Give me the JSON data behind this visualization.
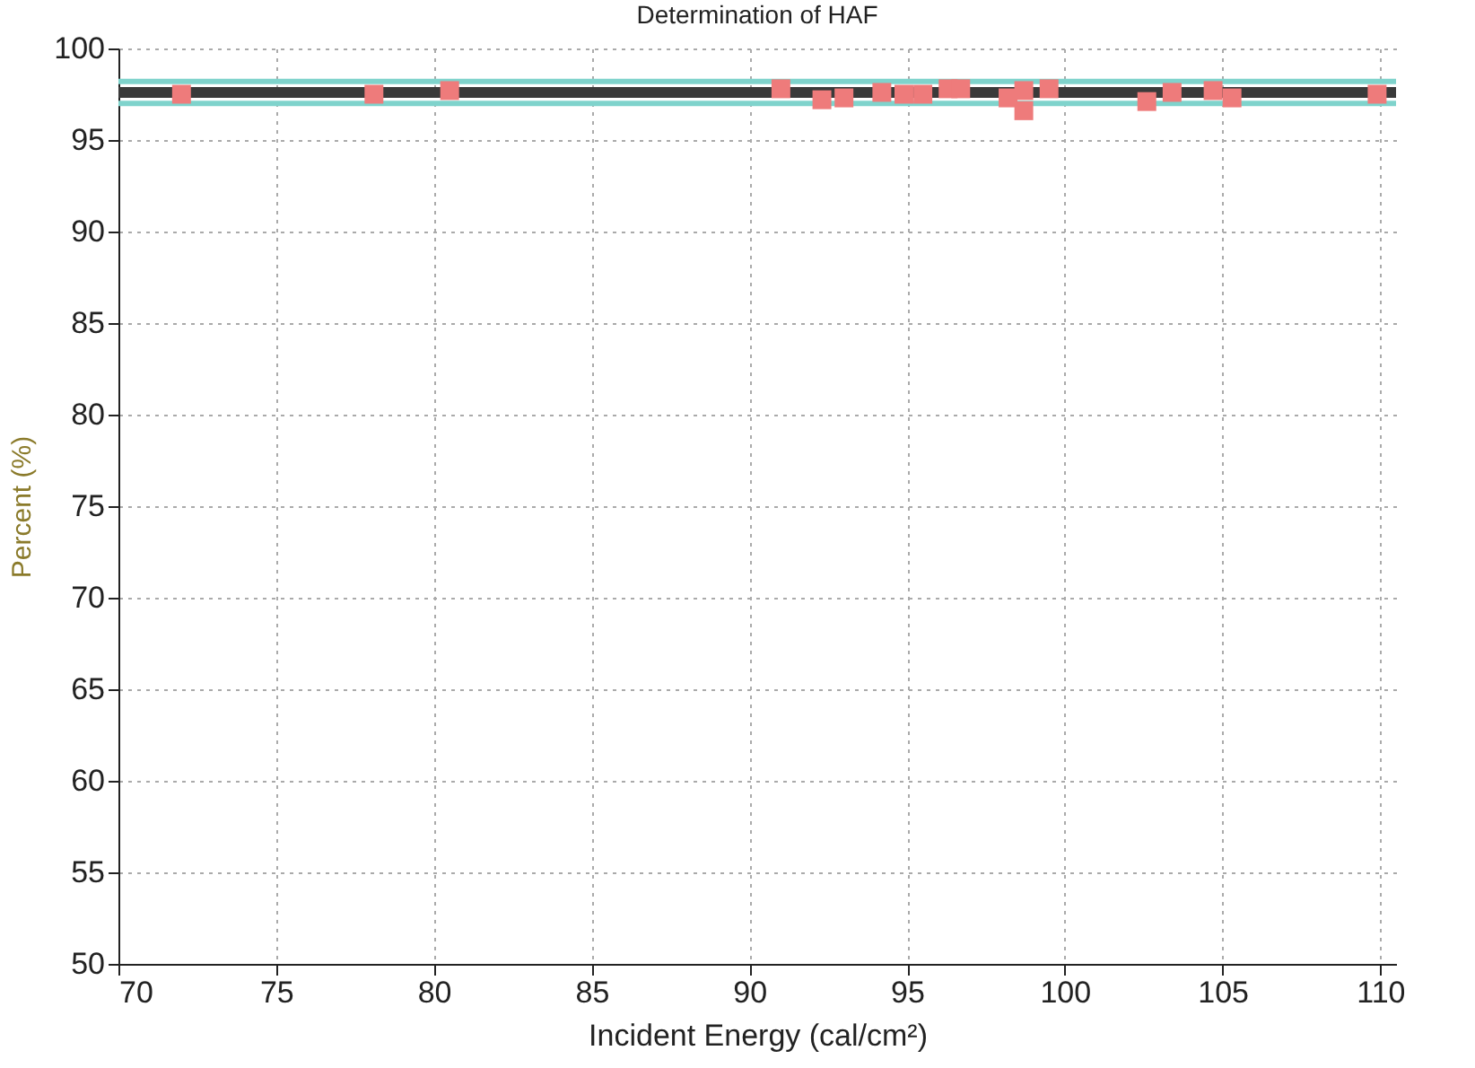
{
  "chart_data": {
    "type": "scatter",
    "title": "Determination of HAF",
    "xlabel": "Incident Energy (cal/cm²)",
    "ylabel": "Percent (%)",
    "x": [
      72.0,
      78.1,
      80.5,
      91.0,
      92.3,
      93.0,
      94.2,
      94.9,
      95.5,
      96.3,
      96.7,
      98.2,
      98.7,
      98.7,
      99.5,
      102.6,
      103.4,
      104.7,
      105.3,
      109.9
    ],
    "series": [
      {
        "color": "#ee7b7b",
        "values": [
          97.5,
          97.5,
          97.7,
          97.8,
          97.2,
          97.3,
          97.6,
          97.5,
          97.5,
          97.8,
          97.8,
          97.3,
          97.7,
          96.6,
          97.8,
          97.1,
          97.6,
          97.7,
          97.3,
          97.5
        ]
      }
    ],
    "marker": "square",
    "xlim": [
      70,
      110.5
    ],
    "xticks": [
      70,
      75,
      80,
      85,
      90,
      95,
      100,
      105,
      110
    ],
    "ylim": [
      50,
      100
    ],
    "yticks": [
      50,
      55,
      60,
      65,
      70,
      75,
      80,
      85,
      90,
      95,
      100
    ],
    "grid": true,
    "ref_lines": [
      {
        "axis": "y",
        "value": 98.2,
        "color": "#7fd3cc"
      },
      {
        "axis": "y",
        "value": 97.0,
        "color": "#7fd3cc"
      },
      {
        "axis": "y",
        "value": 97.6,
        "color": "#3a3a3a"
      }
    ]
  }
}
